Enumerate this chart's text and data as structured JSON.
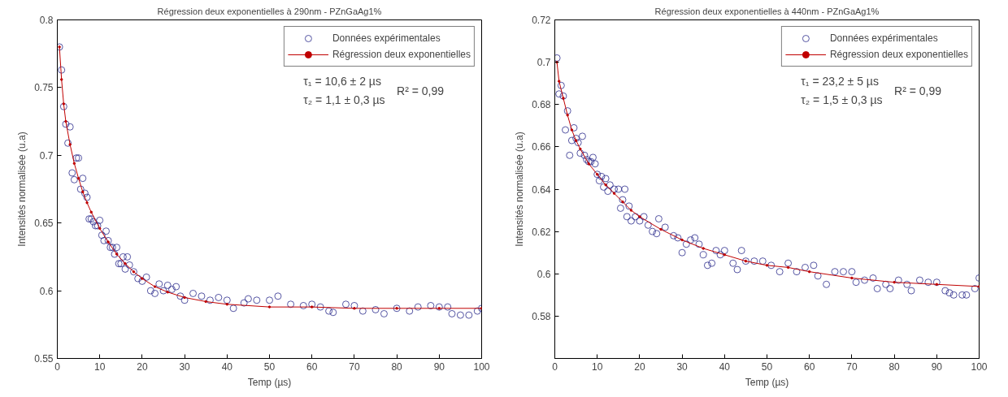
{
  "chart_data": [
    {
      "type": "scatter",
      "title": "Régression deux exponentielles à 290nm - PZnGaAg1%",
      "xlabel": "Temp (µs)",
      "ylabel": "Intensités normalisée (u.a)",
      "xlim": [
        0,
        100
      ],
      "xticks": [
        0,
        10,
        20,
        30,
        40,
        50,
        60,
        70,
        80,
        90,
        100
      ],
      "ylim": [
        0.55,
        0.8
      ],
      "yticks": [
        0.55,
        0.6,
        0.65,
        0.7,
        0.75,
        0.8
      ],
      "grid": false,
      "legend": "top right",
      "annotations": [
        "τ₁ = 10,6 ± 2 µs",
        "τ₂ = 1,1 ± 0,3 µs",
        "R² = 0,99"
      ],
      "series": [
        {
          "name": "Données expérimentales",
          "marker": "circle",
          "color": "#2b2b8c",
          "x": [
            0.5,
            1,
            1.5,
            2,
            2.5,
            3,
            3.5,
            4,
            4.5,
            5,
            5.5,
            6,
            6.5,
            7,
            7.5,
            8,
            8.5,
            9,
            9.5,
            10,
            10.5,
            11,
            11.5,
            12,
            12.5,
            13,
            13.5,
            14,
            14.5,
            15,
            15.5,
            16,
            16.5,
            17,
            18,
            19,
            20,
            21,
            22,
            23,
            24,
            25,
            26,
            27,
            28,
            29,
            30,
            32,
            34,
            36,
            38,
            40,
            41.5,
            44,
            45,
            47,
            50,
            52,
            55,
            58,
            60,
            62,
            64,
            65,
            68,
            70,
            72,
            75,
            77,
            80,
            83,
            85,
            88,
            90,
            92,
            93,
            95,
            97,
            99,
            100
          ],
          "values": [
            0.78,
            0.763,
            0.736,
            0.723,
            0.709,
            0.721,
            0.687,
            0.682,
            0.698,
            0.698,
            0.675,
            0.683,
            0.672,
            0.669,
            0.653,
            0.653,
            0.651,
            0.648,
            0.648,
            0.652,
            0.641,
            0.637,
            0.644,
            0.637,
            0.632,
            0.632,
            0.627,
            0.632,
            0.62,
            0.62,
            0.625,
            0.616,
            0.625,
            0.619,
            0.614,
            0.609,
            0.607,
            0.61,
            0.6,
            0.598,
            0.605,
            0.6,
            0.604,
            0.601,
            0.603,
            0.596,
            0.593,
            0.598,
            0.596,
            0.593,
            0.595,
            0.593,
            0.587,
            0.591,
            0.594,
            0.593,
            0.593,
            0.596,
            0.59,
            0.589,
            0.59,
            0.588,
            0.585,
            0.584,
            0.59,
            0.589,
            0.585,
            0.586,
            0.583,
            0.587,
            0.585,
            0.588,
            0.589,
            0.588,
            0.588,
            0.583,
            0.582,
            0.582,
            0.585,
            0.587
          ]
        },
        {
          "name": "Régression deux exponentielles",
          "type": "line",
          "marker": "circle",
          "color": "#c00000",
          "x": [
            0.5,
            1,
            1.5,
            2,
            3,
            4,
            5,
            6,
            7,
            8,
            10,
            12,
            14,
            16,
            18,
            20,
            23,
            26,
            30,
            35,
            40,
            50,
            60,
            70,
            80,
            90,
            100
          ],
          "values": [
            0.78,
            0.756,
            0.738,
            0.725,
            0.708,
            0.694,
            0.683,
            0.673,
            0.665,
            0.658,
            0.646,
            0.636,
            0.627,
            0.62,
            0.614,
            0.609,
            0.603,
            0.599,
            0.595,
            0.592,
            0.59,
            0.588,
            0.588,
            0.587,
            0.587,
            0.587,
            0.587
          ]
        }
      ]
    },
    {
      "type": "scatter",
      "title": "Régression deux exponentielles à 440nm - PZnGaAg1%",
      "xlabel": "Temp (µs)",
      "ylabel": "Intensités normalisée (u.a)",
      "xlim": [
        0,
        100
      ],
      "xticks": [
        0,
        10,
        20,
        30,
        40,
        50,
        60,
        70,
        80,
        90,
        100
      ],
      "ylim": [
        0.56,
        0.72
      ],
      "yticks": [
        {
          "value": 0.56,
          "label": null
        },
        0.58,
        0.6,
        0.62,
        0.64,
        0.66,
        0.68,
        0.7,
        0.72
      ],
      "grid": false,
      "legend": "top right",
      "annotations": [
        "τ₁ = 23,2 ± 5 µs",
        "τ₂ = 1,5 ± 0,3 µs",
        "R² = 0,99"
      ],
      "series": [
        {
          "name": "Données expérimentales",
          "marker": "circle",
          "color": "#2b2b8c",
          "x": [
            0.5,
            1,
            1.5,
            2,
            2.5,
            3,
            3.5,
            4,
            4.5,
            5,
            5.5,
            6,
            6.5,
            7,
            7.5,
            8,
            8.5,
            9,
            9.5,
            10,
            10.5,
            11,
            11.5,
            12,
            12.5,
            13,
            14,
            15,
            15.5,
            16,
            16.5,
            17,
            17.5,
            18,
            19,
            20,
            21,
            22,
            23,
            24,
            24.5,
            26,
            28,
            29,
            30,
            31,
            32,
            33,
            34,
            35,
            36,
            37,
            38,
            39,
            40,
            42,
            43,
            44,
            45,
            47,
            49,
            51,
            53,
            55,
            57,
            59,
            61,
            62,
            64,
            66,
            68,
            70,
            71,
            73,
            75,
            76,
            78,
            79,
            81,
            83,
            84,
            86,
            88,
            90,
            92,
            93,
            94,
            96,
            97,
            99,
            100
          ],
          "values": [
            0.702,
            0.685,
            0.689,
            0.684,
            0.668,
            0.677,
            0.656,
            0.663,
            0.669,
            0.664,
            0.662,
            0.657,
            0.665,
            0.656,
            0.654,
            0.653,
            0.653,
            0.655,
            0.652,
            0.647,
            0.644,
            0.646,
            0.641,
            0.645,
            0.639,
            0.642,
            0.64,
            0.64,
            0.631,
            0.635,
            0.64,
            0.627,
            0.632,
            0.625,
            0.627,
            0.625,
            0.627,
            0.623,
            0.62,
            0.619,
            0.626,
            0.622,
            0.618,
            0.617,
            0.61,
            0.614,
            0.616,
            0.617,
            0.614,
            0.609,
            0.604,
            0.605,
            0.611,
            0.609,
            0.611,
            0.605,
            0.602,
            0.611,
            0.606,
            0.606,
            0.606,
            0.604,
            0.601,
            0.605,
            0.601,
            0.603,
            0.604,
            0.599,
            0.595,
            0.601,
            0.601,
            0.601,
            0.596,
            0.597,
            0.598,
            0.593,
            0.595,
            0.593,
            0.597,
            0.595,
            0.592,
            0.597,
            0.596,
            0.596,
            0.592,
            0.591,
            0.59,
            0.59,
            0.59,
            0.593,
            0.598
          ]
        },
        {
          "name": "Régression deux exponentielles",
          "type": "line",
          "marker": "circle",
          "color": "#c00000",
          "x": [
            0.5,
            1,
            2,
            3,
            4,
            5,
            6,
            8,
            10,
            12,
            14,
            16,
            18,
            20,
            25,
            30,
            35,
            40,
            45,
            50,
            55,
            60,
            70,
            80,
            90,
            100
          ],
          "values": [
            0.7,
            0.691,
            0.683,
            0.675,
            0.668,
            0.663,
            0.659,
            0.652,
            0.647,
            0.642,
            0.638,
            0.634,
            0.63,
            0.627,
            0.621,
            0.616,
            0.612,
            0.609,
            0.606,
            0.604,
            0.603,
            0.601,
            0.598,
            0.596,
            0.595,
            0.594
          ]
        }
      ]
    }
  ]
}
